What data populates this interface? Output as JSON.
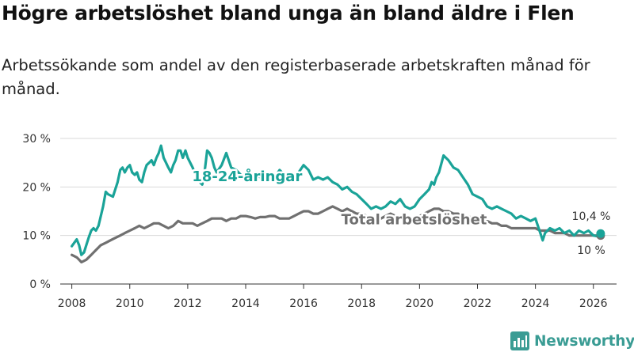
{
  "title": "Högre arbetslöshet bland unga än bland äldre i Flen",
  "subtitle": "Arbetssökande som andel av den registerbaserade arbetskraften månad för månad.",
  "brand": {
    "name": "Newsworthy",
    "logo_icon": "bar-chart-icon",
    "color": "#3a9c94"
  },
  "colors": {
    "youth": "#1aa398",
    "total": "#707070",
    "grid": "#d9d9d9",
    "axis": "#333333"
  },
  "chart_data": {
    "type": "line",
    "title": "Högre arbetslöshet bland unga än bland äldre i Flen",
    "xlabel": "",
    "ylabel": "",
    "xlim": [
      2007.6,
      2026.8
    ],
    "ylim": [
      0,
      30
    ],
    "grid": true,
    "x_ticks": [
      2008,
      2010,
      2012,
      2014,
      2016,
      2018,
      2020,
      2022,
      2024,
      2026
    ],
    "x_tick_labels": [
      "2008",
      "2010",
      "2012",
      "2014",
      "2016",
      "2018",
      "2020",
      "2022",
      "2024",
      "2026"
    ],
    "y_ticks": [
      0,
      10,
      20,
      30
    ],
    "y_tick_labels": [
      "0 %",
      "10 %",
      "20 %",
      "30 %"
    ],
    "series": [
      {
        "name": "18-24-åringar",
        "label": "18-24-åringar",
        "color": "#1aa398",
        "end_label": "10,4 %",
        "x": [
          2008.0,
          2008.17,
          2008.25,
          2008.33,
          2008.42,
          2008.5,
          2008.58,
          2008.67,
          2008.75,
          2008.83,
          2008.92,
          2009.0,
          2009.08,
          2009.17,
          2009.25,
          2009.42,
          2009.58,
          2009.67,
          2009.75,
          2009.83,
          2009.92,
          2010.0,
          2010.08,
          2010.17,
          2010.25,
          2010.33,
          2010.42,
          2010.5,
          2010.58,
          2010.67,
          2010.75,
          2010.83,
          2010.92,
          2011.0,
          2011.08,
          2011.17,
          2011.25,
          2011.33,
          2011.42,
          2011.5,
          2011.58,
          2011.67,
          2011.75,
          2011.83,
          2011.92,
          2012.0,
          2012.17,
          2012.33,
          2012.5,
          2012.58,
          2012.67,
          2012.75,
          2012.83,
          2012.92,
          2013.0,
          2013.17,
          2013.33,
          2013.5,
          2013.67,
          2013.83,
          2014.0,
          2014.17,
          2014.33,
          2014.5,
          2014.67,
          2014.83,
          2015.0,
          2015.17,
          2015.33,
          2015.5,
          2015.67,
          2015.83,
          2016.0,
          2016.17,
          2016.33,
          2016.5,
          2016.67,
          2016.83,
          2017.0,
          2017.17,
          2017.33,
          2017.5,
          2017.67,
          2017.83,
          2018.0,
          2018.17,
          2018.33,
          2018.5,
          2018.67,
          2018.83,
          2019.0,
          2019.17,
          2019.33,
          2019.5,
          2019.67,
          2019.83,
          2020.0,
          2020.17,
          2020.33,
          2020.42,
          2020.5,
          2020.58,
          2020.67,
          2020.83,
          2021.0,
          2021.17,
          2021.33,
          2021.5,
          2021.67,
          2021.83,
          2022.0,
          2022.17,
          2022.33,
          2022.5,
          2022.67,
          2022.83,
          2023.0,
          2023.17,
          2023.33,
          2023.5,
          2023.67,
          2023.83,
          2024.0,
          2024.17,
          2024.25,
          2024.33,
          2024.5,
          2024.67,
          2024.83,
          2025.0,
          2025.17,
          2025.33,
          2025.5,
          2025.67,
          2025.83,
          2026.0,
          2026.17,
          2026.25
        ],
        "values": [
          7.8,
          9.2,
          8.0,
          6.0,
          6.5,
          8.0,
          9.5,
          11.0,
          11.5,
          11.0,
          12.0,
          14.0,
          16.0,
          19.0,
          18.5,
          18.0,
          21.0,
          23.5,
          24.0,
          23.0,
          24.0,
          24.5,
          23.0,
          22.5,
          23.0,
          21.5,
          21.0,
          23.0,
          24.5,
          25.0,
          25.5,
          24.5,
          26.0,
          27.0,
          28.5,
          26.0,
          25.0,
          24.0,
          23.0,
          24.5,
          25.5,
          27.5,
          27.5,
          26.0,
          27.5,
          26.0,
          24.0,
          21.5,
          20.5,
          23.0,
          27.5,
          27.0,
          26.0,
          24.0,
          23.0,
          24.5,
          27.0,
          24.0,
          23.5,
          22.5,
          21.5,
          21.5,
          22.5,
          22.0,
          22.0,
          21.5,
          22.0,
          23.5,
          22.5,
          22.0,
          22.0,
          23.0,
          24.5,
          23.5,
          21.5,
          22.0,
          21.5,
          22.0,
          21.0,
          20.5,
          19.5,
          20.0,
          19.0,
          18.5,
          17.5,
          16.5,
          15.5,
          16.0,
          15.5,
          16.0,
          17.0,
          16.5,
          17.5,
          16.0,
          15.5,
          16.0,
          17.5,
          18.5,
          19.5,
          21.0,
          20.5,
          22.0,
          23.0,
          26.5,
          25.5,
          24.0,
          23.5,
          22.0,
          20.5,
          18.5,
          18.0,
          17.5,
          16.0,
          15.5,
          16.0,
          15.5,
          15.0,
          14.5,
          13.5,
          14.0,
          13.5,
          13.0,
          13.5,
          10.5,
          9.0,
          10.5,
          11.5,
          11.0,
          11.5,
          10.5,
          11.0,
          10.0,
          11.0,
          10.5,
          11.0,
          10.0,
          9.8,
          10.4
        ]
      },
      {
        "name": "Total arbetslöshet",
        "label": "Total arbetslöshet",
        "color": "#707070",
        "end_label": "10 %",
        "x": [
          2008.0,
          2008.17,
          2008.25,
          2008.33,
          2008.5,
          2008.67,
          2008.83,
          2009.0,
          2009.17,
          2009.33,
          2009.5,
          2009.67,
          2009.83,
          2010.0,
          2010.17,
          2010.33,
          2010.5,
          2010.67,
          2010.83,
          2011.0,
          2011.17,
          2011.33,
          2011.5,
          2011.67,
          2011.83,
          2012.0,
          2012.17,
          2012.33,
          2012.5,
          2012.67,
          2012.83,
          2013.0,
          2013.17,
          2013.33,
          2013.5,
          2013.67,
          2013.83,
          2014.0,
          2014.17,
          2014.33,
          2014.5,
          2014.67,
          2014.83,
          2015.0,
          2015.17,
          2015.33,
          2015.5,
          2015.67,
          2015.83,
          2016.0,
          2016.17,
          2016.33,
          2016.5,
          2016.67,
          2016.83,
          2017.0,
          2017.17,
          2017.33,
          2017.5,
          2017.67,
          2017.83,
          2018.0,
          2018.17,
          2018.33,
          2018.5,
          2018.67,
          2018.83,
          2019.0,
          2019.17,
          2019.33,
          2019.5,
          2019.67,
          2019.83,
          2020.0,
          2020.17,
          2020.33,
          2020.5,
          2020.67,
          2020.83,
          2021.0,
          2021.17,
          2021.33,
          2021.5,
          2021.67,
          2021.83,
          2022.0,
          2022.17,
          2022.33,
          2022.5,
          2022.67,
          2022.83,
          2023.0,
          2023.17,
          2023.33,
          2023.5,
          2023.67,
          2023.83,
          2024.0,
          2024.17,
          2024.33,
          2024.5,
          2024.67,
          2024.83,
          2025.0,
          2025.17,
          2025.33,
          2025.5,
          2025.67,
          2025.83,
          2026.0,
          2026.17,
          2026.25
        ],
        "values": [
          6.0,
          5.5,
          5.0,
          4.5,
          5.0,
          6.0,
          7.0,
          8.0,
          8.5,
          9.0,
          9.5,
          10.0,
          10.5,
          11.0,
          11.5,
          12.0,
          11.5,
          12.0,
          12.5,
          12.5,
          12.0,
          11.5,
          12.0,
          13.0,
          12.5,
          12.5,
          12.5,
          12.0,
          12.5,
          13.0,
          13.5,
          13.5,
          13.5,
          13.0,
          13.5,
          13.5,
          14.0,
          14.0,
          13.8,
          13.5,
          13.8,
          13.8,
          14.0,
          14.0,
          13.5,
          13.5,
          13.5,
          14.0,
          14.5,
          15.0,
          15.0,
          14.5,
          14.5,
          15.0,
          15.5,
          16.0,
          15.5,
          15.0,
          15.5,
          15.0,
          14.5,
          14.5,
          14.0,
          14.0,
          13.5,
          13.5,
          14.0,
          14.5,
          14.0,
          13.5,
          14.0,
          13.5,
          13.5,
          14.0,
          14.5,
          15.0,
          15.5,
          15.5,
          15.0,
          15.0,
          14.5,
          14.5,
          14.0,
          14.0,
          13.5,
          13.5,
          13.0,
          13.0,
          12.5,
          12.5,
          12.0,
          12.0,
          11.5,
          11.5,
          11.5,
          11.5,
          11.5,
          11.5,
          11.0,
          11.0,
          11.0,
          10.5,
          10.5,
          10.5,
          10.0,
          10.0,
          10.0,
          10.0,
          10.0,
          10.0,
          10.0,
          10.0
        ]
      }
    ]
  }
}
